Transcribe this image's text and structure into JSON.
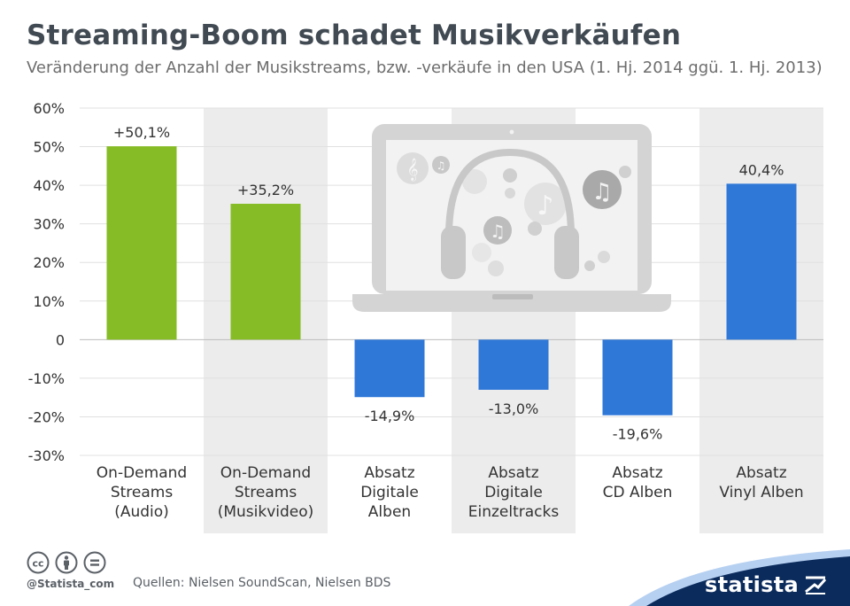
{
  "header": {
    "title": "Streaming-Boom schadet Musikverkäufen",
    "subtitle": "Veränderung der Anzahl der Musikstreams, bzw. -verkäufe in den USA (1. Hj. 2014 ggü. 1. Hj. 2013)"
  },
  "chart_data": {
    "type": "bar",
    "title": "Streaming-Boom schadet Musikverkäufen",
    "subtitle": "Veränderung der Anzahl der Musikstreams, bzw. -verkäufe in den USA (1. Hj. 2014 ggü. 1. Hj. 2013)",
    "categories": [
      [
        "On-Demand",
        "Streams",
        "(Audio)"
      ],
      [
        "On-Demand",
        "Streams",
        "(Musikvideo)"
      ],
      [
        "Absatz",
        "Digitale",
        "Alben"
      ],
      [
        "Absatz",
        "Digitale",
        "Einzeltracks"
      ],
      [
        "Absatz",
        "CD Alben"
      ],
      [
        "Absatz",
        "Vinyl Alben"
      ]
    ],
    "values": [
      50.1,
      35.2,
      -14.9,
      -13.0,
      -19.6,
      40.4
    ],
    "value_labels": [
      "+50,1%",
      "+35,2%",
      "-14,9%",
      "-13,0%",
      "-19,6%",
      "40,4%"
    ],
    "bar_colors": [
      "#86bc25",
      "#86bc25",
      "#2f78d8",
      "#2f78d8",
      "#2f78d8",
      "#2f78d8"
    ],
    "ylim": [
      -30,
      60
    ],
    "yticks": [
      60,
      50,
      40,
      30,
      20,
      10,
      0,
      -10,
      -20,
      -30
    ],
    "ytick_labels": [
      "60%",
      "50%",
      "40%",
      "30%",
      "20%",
      "10%",
      "0",
      "-10%",
      "-20%",
      "-30%"
    ],
    "xlabel": "",
    "ylabel": "",
    "grid": true,
    "alternating_column_shading": true,
    "colors": {
      "green": "#86bc25",
      "blue": "#2f78d8",
      "grid": "#e0e0e0",
      "band": "#ececec",
      "axis_text": "#333333"
    }
  },
  "footer": {
    "license_icons": [
      "cc-icon",
      "by-icon",
      "nd-icon"
    ],
    "handle": "@Statista_com",
    "sources": "Quellen: Nielsen SoundScan, Nielsen BDS",
    "brand": "statista",
    "brand_color": "#0b2b5c"
  }
}
